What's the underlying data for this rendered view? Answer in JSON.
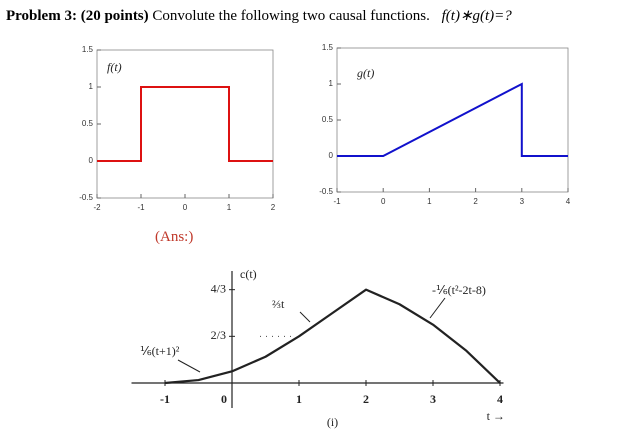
{
  "header": {
    "problem": "Problem 3:",
    "points": "(20 points)",
    "prompt": "Convolute the following  two causal functions.",
    "formula": "f(t)∗g(t)=?"
  },
  "answer_label": "(Ans:)",
  "chart_data": [
    {
      "type": "line",
      "label": "f(t)",
      "color": "#dd1111",
      "x": [
        -2,
        -1,
        -1,
        1,
        1,
        2
      ],
      "values": [
        0,
        0,
        1,
        1,
        0,
        0
      ],
      "xlim": [
        -2,
        2
      ],
      "ylim": [
        -0.5,
        1.5
      ],
      "xticks": [
        -2,
        -1,
        0,
        1,
        2
      ],
      "yticks": [
        -0.5,
        0,
        0.5,
        1,
        1.5
      ]
    },
    {
      "type": "line",
      "label": "g(t)",
      "color": "#1111cc",
      "x": [
        -1,
        0,
        3,
        3,
        4
      ],
      "values": [
        0,
        0,
        1,
        0,
        0
      ],
      "xlim": [
        -1,
        4
      ],
      "ylim": [
        -0.5,
        1.5
      ],
      "xticks": [
        -1,
        0,
        1,
        2,
        3,
        4
      ],
      "yticks": [
        -0.5,
        0,
        0.5,
        1,
        1.5
      ]
    },
    {
      "type": "line",
      "ylabel": "c(t)",
      "xlabel": "t →",
      "caption": "(i)",
      "color": "#222222",
      "x": [
        -1,
        -0.5,
        0,
        0.5,
        1,
        1.5,
        2,
        2.5,
        3,
        3.5,
        4
      ],
      "values": [
        0,
        0.0417,
        0.1667,
        0.375,
        0.6667,
        1,
        1.3333,
        1.125,
        0.8333,
        0.4583,
        0
      ],
      "xlim": [
        -1.5,
        4.5
      ],
      "ylim": [
        0,
        1.6
      ],
      "xticks": [
        -1,
        0,
        1,
        2,
        3,
        4
      ],
      "yticks": [
        {
          "value": 0.6667,
          "label": "2/3"
        },
        {
          "value": 1.3333,
          "label": "4/3"
        }
      ],
      "annotations": [
        "⅙(t+1)²",
        "⅔t",
        "-⅙(t²-2t-8)"
      ]
    }
  ]
}
